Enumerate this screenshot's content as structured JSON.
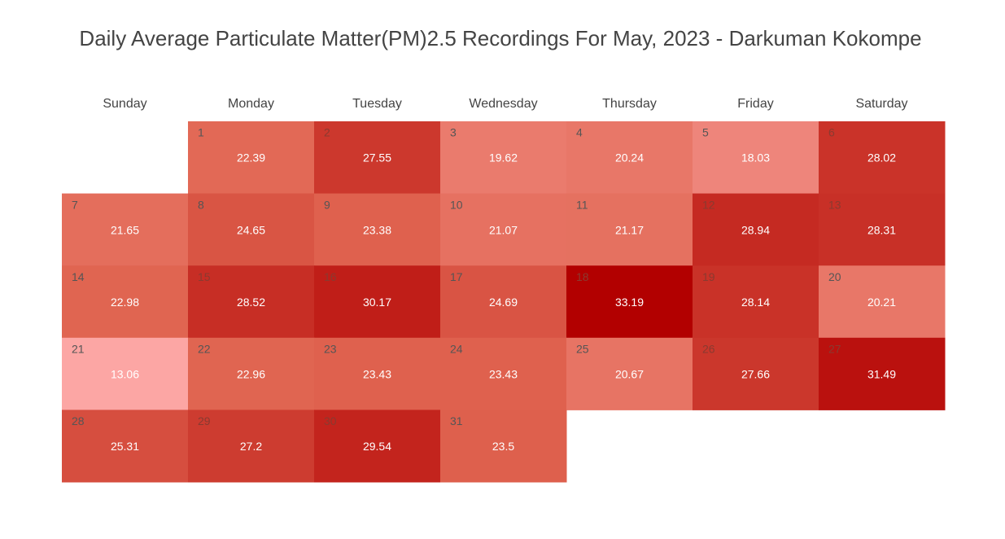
{
  "chart_data": {
    "type": "heatmap",
    "title": "Daily Average Particulate Matter(PM)2.5 Recordings For May, 2023 - Darkuman Kokompe",
    "weekdays": [
      "Sunday",
      "Monday",
      "Tuesday",
      "Wednesday",
      "Thursday",
      "Friday",
      "Saturday"
    ],
    "first_weekday_index": 1,
    "days": [
      1,
      2,
      3,
      4,
      5,
      6,
      7,
      8,
      9,
      10,
      11,
      12,
      13,
      14,
      15,
      16,
      17,
      18,
      19,
      20,
      21,
      22,
      23,
      24,
      25,
      26,
      27,
      28,
      29,
      30,
      31
    ],
    "values": [
      22.39,
      27.55,
      19.62,
      20.24,
      18.03,
      28.02,
      21.65,
      24.65,
      23.38,
      21.07,
      21.17,
      28.94,
      28.31,
      22.98,
      28.52,
      30.17,
      24.69,
      33.19,
      28.14,
      20.21,
      13.06,
      22.96,
      23.43,
      23.43,
      20.67,
      27.66,
      31.49,
      25.31,
      27.2,
      29.54,
      23.5
    ],
    "value_labels": [
      "22.39",
      "27.55",
      "19.62",
      "20.24",
      "18.03",
      "28.02",
      "21.65",
      "24.65",
      "23.38",
      "21.07",
      "21.17",
      "28.94",
      "28.31",
      "22.98",
      "28.52",
      "30.17",
      "24.69",
      "33.19",
      "28.14",
      "20.21",
      "13.06",
      "22.96",
      "23.43",
      "23.43",
      "20.67",
      "27.66",
      "31.49",
      "25.31",
      "27.2",
      "29.54",
      "23.5"
    ],
    "color_scale": {
      "min": 13.06,
      "max": 33.19,
      "low_color": "#fca6a4",
      "mid_color": "#e06450",
      "high_color": "#b20000"
    },
    "grid": false,
    "legend": "none"
  }
}
